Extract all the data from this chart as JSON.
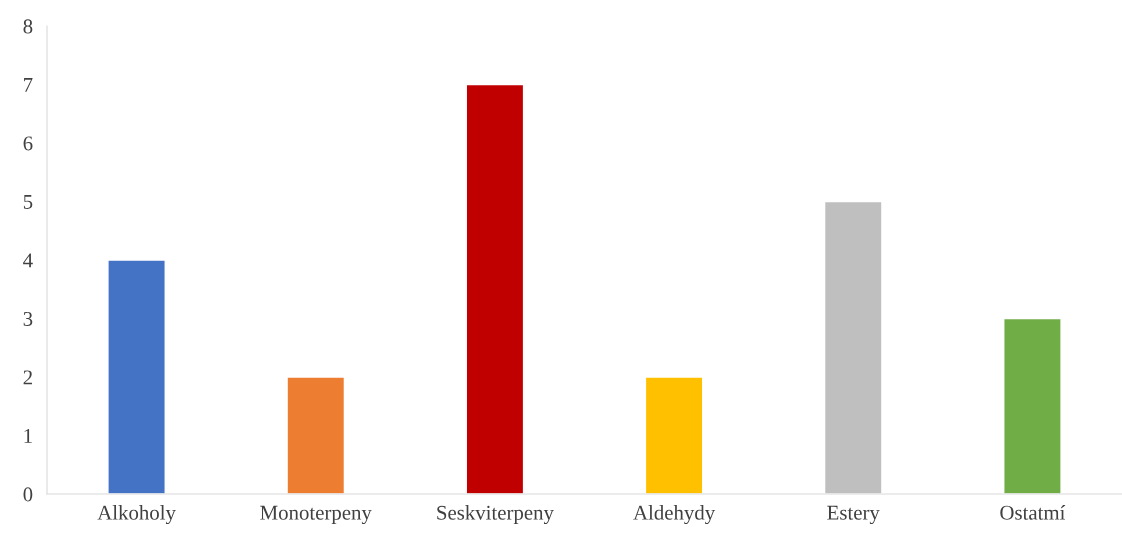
{
  "chart_data": {
    "type": "bar",
    "categories": [
      "Alkoholy",
      "Monoterpeny",
      "Seskviterpeny",
      "Aldehydy",
      "Estery",
      "Ostatmí"
    ],
    "values": [
      4,
      2,
      7,
      2,
      5,
      3
    ],
    "colors": [
      "#4472c4",
      "#ed7d31",
      "#c00000",
      "#ffc000",
      "#bfbfbf",
      "#70ad47"
    ],
    "ylim": [
      0,
      8
    ],
    "yticks": [
      0,
      1,
      2,
      3,
      4,
      5,
      6,
      7,
      8
    ],
    "grid": false,
    "legend": false
  }
}
